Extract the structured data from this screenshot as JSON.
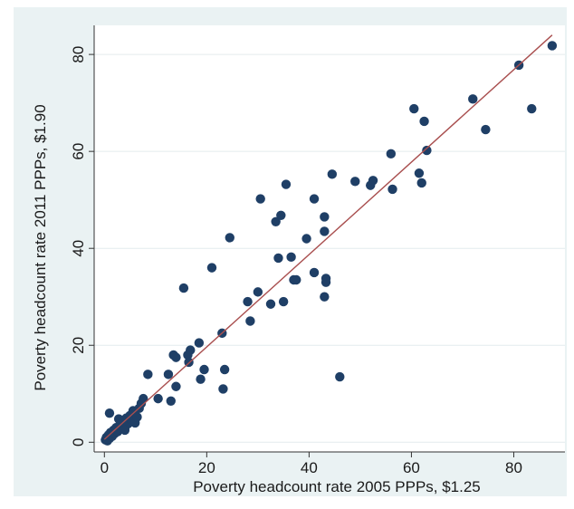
{
  "chart_data": {
    "type": "scatter",
    "title": "",
    "xlabel": "Poverty headcount rate 2005 PPPs, $1.25",
    "ylabel": "Poverty headcount rate 2011 PPPs, $1.90",
    "xlim": [
      -2,
      90
    ],
    "ylim": [
      -2,
      86
    ],
    "xticks": [
      0,
      20,
      40,
      60,
      80
    ],
    "yticks": [
      0,
      20,
      40,
      60,
      80
    ],
    "grid": "horizontal",
    "legend": "none",
    "colors": {
      "points": "#1f3f66",
      "fit_line": "#a94f4f",
      "plot_bg": "#ffffff",
      "outer_bg": "#eaf2f3",
      "grid": "#e4ecee"
    },
    "fit_line": {
      "x": [
        0,
        87.5
      ],
      "y": [
        0.6,
        84
      ]
    },
    "series": [
      {
        "values": [
          [
            0.2,
            0.5
          ],
          [
            0.4,
            1.0
          ],
          [
            0.6,
            0.3
          ],
          [
            0.8,
            1.5
          ],
          [
            1.0,
            0.8
          ],
          [
            1.2,
            2.0
          ],
          [
            1.5,
            1.2
          ],
          [
            1.8,
            2.5
          ],
          [
            2.0,
            1.8
          ],
          [
            2.3,
            3.0
          ],
          [
            2.6,
            2.2
          ],
          [
            3.0,
            3.5
          ],
          [
            3.3,
            2.8
          ],
          [
            3.6,
            4.2
          ],
          [
            4.0,
            3.0
          ],
          [
            4.3,
            5.0
          ],
          [
            4.6,
            3.8
          ],
          [
            5.0,
            5.5
          ],
          [
            5.3,
            4.5
          ],
          [
            5.6,
            6.5
          ],
          [
            6.0,
            4.0
          ],
          [
            6.4,
            5.2
          ],
          [
            6.8,
            7.0
          ],
          [
            7.2,
            8.0
          ],
          [
            7.6,
            9.0
          ],
          [
            1.0,
            6.0
          ],
          [
            2.8,
            4.8
          ],
          [
            4.0,
            2.5
          ],
          [
            8.5,
            14.0
          ],
          [
            10.5,
            9.0
          ],
          [
            12.5,
            14.0
          ],
          [
            13.0,
            8.5
          ],
          [
            13.5,
            18.0
          ],
          [
            14.0,
            17.5
          ],
          [
            14.0,
            11.5
          ],
          [
            15.5,
            31.8
          ],
          [
            16.3,
            18.0
          ],
          [
            16.5,
            16.5
          ],
          [
            16.8,
            19.0
          ],
          [
            18.5,
            20.5
          ],
          [
            18.8,
            13.0
          ],
          [
            19.5,
            15.0
          ],
          [
            21.0,
            36.0
          ],
          [
            23.0,
            22.5
          ],
          [
            23.2,
            11.0
          ],
          [
            23.5,
            15.0
          ],
          [
            24.5,
            42.2
          ],
          [
            28.0,
            29.0
          ],
          [
            28.5,
            25.0
          ],
          [
            30.0,
            31.0
          ],
          [
            30.5,
            50.2
          ],
          [
            32.5,
            28.5
          ],
          [
            33.5,
            45.5
          ],
          [
            34.0,
            38.0
          ],
          [
            34.5,
            46.8
          ],
          [
            35.0,
            29.0
          ],
          [
            35.5,
            53.2
          ],
          [
            36.5,
            38.2
          ],
          [
            37.0,
            33.5
          ],
          [
            37.5,
            33.5
          ],
          [
            39.5,
            42.0
          ],
          [
            41.0,
            35.0
          ],
          [
            41.0,
            50.2
          ],
          [
            43.0,
            43.5
          ],
          [
            43.0,
            46.5
          ],
          [
            43.3,
            33.8
          ],
          [
            43.3,
            33.0
          ],
          [
            43.0,
            30.0
          ],
          [
            44.5,
            55.3
          ],
          [
            46.0,
            13.5
          ],
          [
            49.0,
            53.8
          ],
          [
            52.0,
            53.0
          ],
          [
            52.5,
            54.0
          ],
          [
            56.0,
            59.5
          ],
          [
            56.3,
            52.2
          ],
          [
            60.5,
            68.8
          ],
          [
            61.5,
            55.5
          ],
          [
            62.0,
            53.5
          ],
          [
            62.5,
            66.2
          ],
          [
            63.0,
            60.2
          ],
          [
            72.0,
            70.8
          ],
          [
            74.5,
            64.5
          ],
          [
            81.0,
            77.8
          ],
          [
            83.5,
            68.8
          ],
          [
            87.5,
            81.8
          ]
        ]
      }
    ]
  }
}
